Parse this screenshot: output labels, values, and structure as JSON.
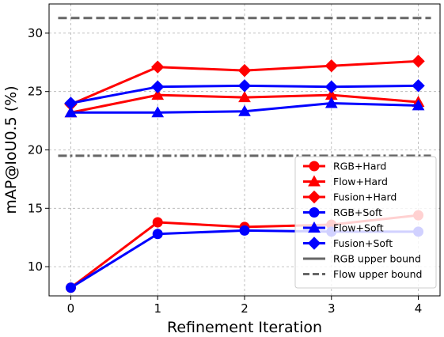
{
  "chart_data": {
    "type": "line",
    "xlabel": "Refinement Iteration",
    "ylabel": "mAP@IoU0.5 (%)",
    "x": [
      0,
      1,
      2,
      3,
      4
    ],
    "xlim": [
      -0.25,
      4.25
    ],
    "ylim": [
      7.5,
      32.5
    ],
    "xticks": [
      0,
      1,
      2,
      3,
      4
    ],
    "yticks": [
      10,
      15,
      20,
      25,
      30
    ],
    "grid": true,
    "legend_position": "lower-right",
    "series": [
      {
        "name": "RGB+Hard",
        "color": "#ff0000",
        "marker": "circle",
        "values": [
          8.2,
          13.8,
          13.4,
          13.6,
          14.4
        ]
      },
      {
        "name": "Flow+Hard",
        "color": "#ff0000",
        "marker": "triangle",
        "values": [
          23.2,
          24.7,
          24.5,
          24.7,
          24.1
        ]
      },
      {
        "name": "Fusion+Hard",
        "color": "#ff0000",
        "marker": "diamond",
        "values": [
          23.9,
          27.1,
          26.8,
          27.2,
          27.6
        ]
      },
      {
        "name": "RGB+Soft",
        "color": "#0000ff",
        "marker": "circle",
        "values": [
          8.2,
          12.8,
          13.1,
          13.0,
          13.0
        ]
      },
      {
        "name": "Flow+Soft",
        "color": "#0000ff",
        "marker": "triangle",
        "values": [
          23.2,
          23.2,
          23.3,
          24.0,
          23.8
        ]
      },
      {
        "name": "Fusion+Soft",
        "color": "#0000ff",
        "marker": "diamond",
        "values": [
          24.0,
          25.4,
          25.5,
          25.4,
          25.5
        ]
      }
    ],
    "reference_lines": [
      {
        "name": "RGB upper bound",
        "value": 19.5,
        "color": "#666666",
        "style": "dashdot"
      },
      {
        "name": "Flow upper bound",
        "value": 31.3,
        "color": "#666666",
        "style": "dashed"
      }
    ]
  }
}
